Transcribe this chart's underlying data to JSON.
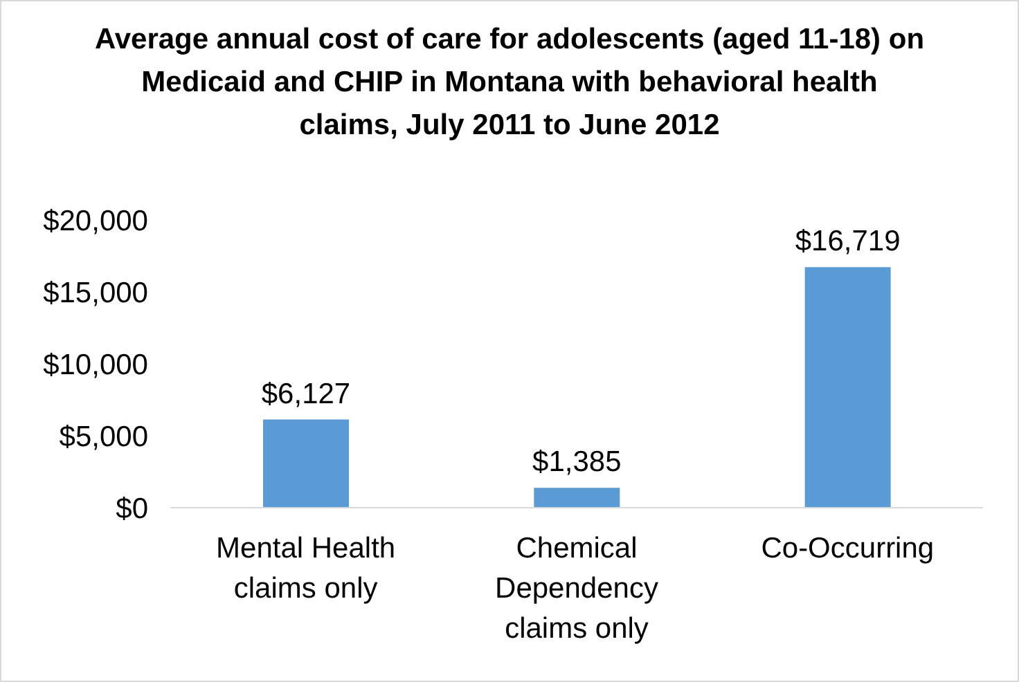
{
  "chart_data": {
    "type": "bar",
    "title": "Average annual cost of care for adolescents (aged 11-18) on Medicaid and CHIP in Montana with behavioral health claims, July 2011 to June 2012",
    "categories": [
      "Mental Health claims only",
      "Chemical Dependency claims only",
      "Co-Occurring"
    ],
    "values": [
      6127,
      1385,
      16719
    ],
    "value_labels": [
      "$6,127",
      "$1,385",
      "$16,719"
    ],
    "color": "#5b9bd5",
    "ylim": [
      0,
      20000
    ],
    "yticks": [
      {
        "value": 0,
        "label": "$0"
      },
      {
        "value": 5000,
        "label": "$5,000"
      },
      {
        "value": 10000,
        "label": "$10,000"
      },
      {
        "value": 15000,
        "label": "$15,000"
      },
      {
        "value": 20000,
        "label": "$20,000"
      }
    ],
    "grid": false,
    "legend": false
  }
}
